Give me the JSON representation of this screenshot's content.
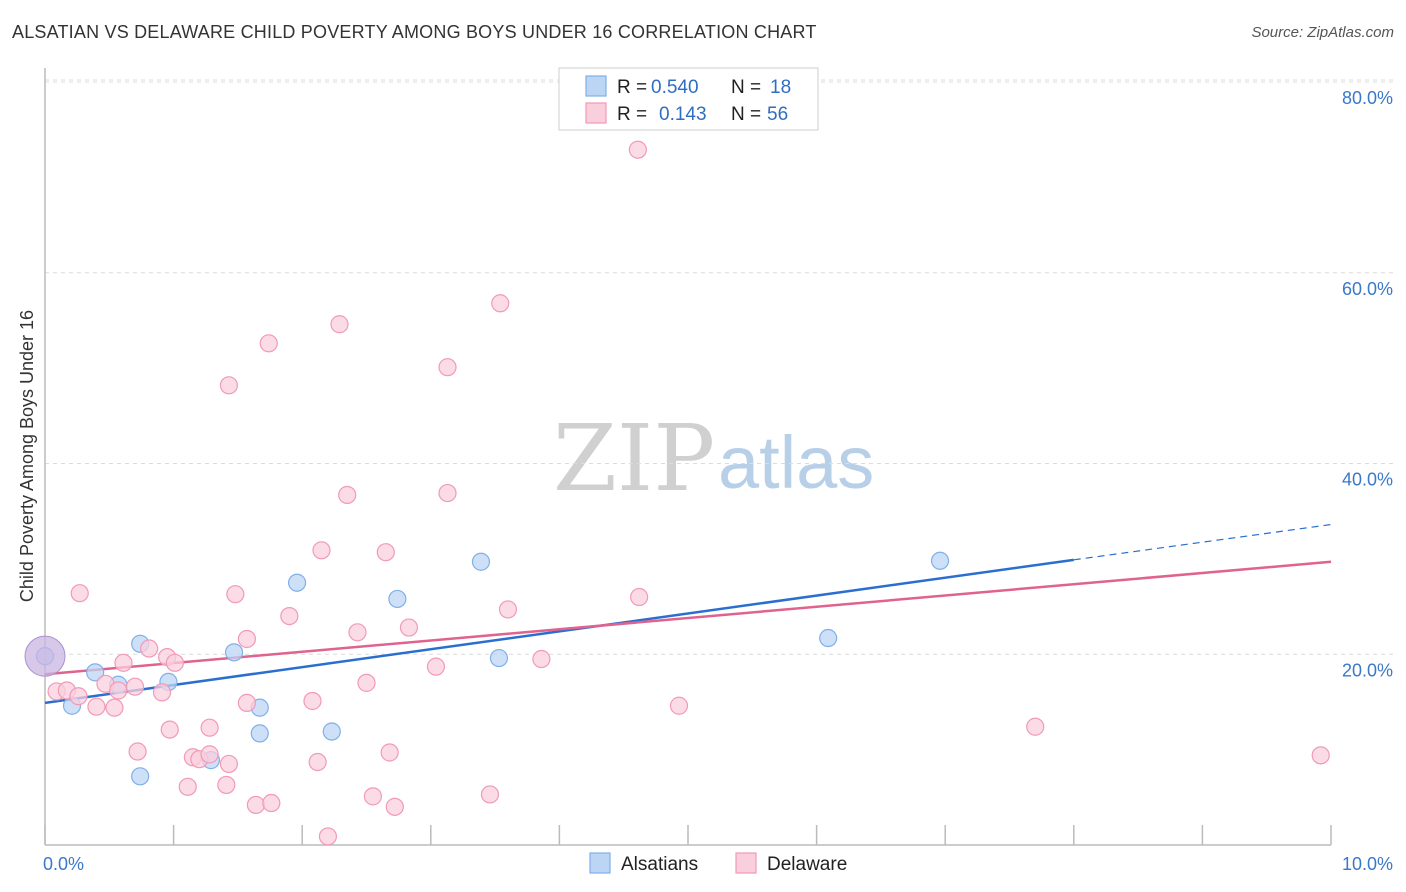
{
  "title": "ALSATIAN VS DELAWARE CHILD POVERTY AMONG BOYS UNDER 16 CORRELATION CHART",
  "source": "Source: ZipAtlas.com",
  "watermark": {
    "zip": "ZIP",
    "atlas": "atlas"
  },
  "legend": {
    "rows": [
      {
        "r_label": "R =",
        "r_value": "0.540",
        "n_label": "N =",
        "n_value": "18"
      },
      {
        "r_label": "R =",
        "r_value": "0.143",
        "n_label": "N =",
        "n_value": "56"
      }
    ]
  },
  "chart_data": {
    "type": "scatter",
    "title": "ALSATIAN VS DELAWARE CHILD POVERTY AMONG BOYS UNDER 16 CORRELATION CHART",
    "ylabel": "Child Poverty Among Boys Under 16",
    "xlim": [
      0,
      10
    ],
    "ylim": [
      0,
      80
    ],
    "x_tick_labels": [
      "0.0%",
      "10.0%"
    ],
    "y_ticks": [
      20,
      40,
      60,
      80
    ],
    "y_tick_labels": [
      "20.0%",
      "40.0%",
      "60.0%",
      "80.0%"
    ],
    "grid": "horizontal dashed",
    "legend_position": "top-center",
    "series": [
      {
        "name": "Alsatians",
        "color": "#7fb0e8",
        "fill": "#bcd5f5",
        "line_color": "#2a6fd0",
        "R": 0.54,
        "N": 18,
        "trend": {
          "x0": 0,
          "y0": 14.9,
          "x1": 8.0,
          "y1": 29.9,
          "dash_to_x": 10.0,
          "dash_to_y": 33.6
        },
        "points": [
          [
            0.0,
            19.8
          ],
          [
            0.21,
            14.6
          ],
          [
            0.39,
            18.1
          ],
          [
            0.57,
            16.8
          ],
          [
            0.74,
            21.1
          ],
          [
            0.96,
            17.1
          ],
          [
            0.74,
            7.2
          ],
          [
            1.29,
            8.9
          ],
          [
            1.47,
            20.2
          ],
          [
            1.67,
            14.4
          ],
          [
            1.67,
            11.7
          ],
          [
            1.96,
            27.5
          ],
          [
            2.23,
            11.9
          ],
          [
            2.74,
            25.8
          ],
          [
            3.39,
            29.7
          ],
          [
            3.53,
            19.6
          ],
          [
            6.09,
            21.7
          ],
          [
            6.96,
            29.8
          ]
        ]
      },
      {
        "name": "Delaware",
        "color": "#f19ab6",
        "fill": "#f9cfdd",
        "line_color": "#e0628e",
        "R": 0.143,
        "N": 56,
        "trend": {
          "x0": 0,
          "y0": 17.9,
          "x1": 10.0,
          "y1": 29.7
        },
        "points": [
          [
            0.09,
            16.1
          ],
          [
            0.17,
            16.2
          ],
          [
            0.26,
            15.6
          ],
          [
            0.27,
            26.4
          ],
          [
            0.4,
            14.5
          ],
          [
            0.47,
            16.9
          ],
          [
            0.54,
            14.4
          ],
          [
            0.57,
            16.2
          ],
          [
            0.61,
            19.1
          ],
          [
            0.7,
            16.6
          ],
          [
            0.72,
            9.8
          ],
          [
            0.81,
            20.6
          ],
          [
            0.91,
            16.0
          ],
          [
            0.95,
            19.7
          ],
          [
            0.97,
            12.1
          ],
          [
            1.01,
            19.1
          ],
          [
            1.11,
            6.1
          ],
          [
            1.15,
            9.2
          ],
          [
            1.2,
            9.0
          ],
          [
            1.28,
            12.3
          ],
          [
            1.28,
            9.5
          ],
          [
            1.41,
            6.3
          ],
          [
            1.43,
            48.2
          ],
          [
            1.48,
            26.3
          ],
          [
            1.57,
            21.6
          ],
          [
            1.57,
            14.9
          ],
          [
            1.64,
            4.2
          ],
          [
            1.74,
            52.6
          ],
          [
            1.76,
            4.4
          ],
          [
            1.9,
            24.0
          ],
          [
            2.08,
            15.1
          ],
          [
            2.12,
            8.7
          ],
          [
            2.15,
            30.9
          ],
          [
            2.2,
            0.9
          ],
          [
            2.29,
            54.6
          ],
          [
            2.35,
            36.7
          ],
          [
            2.43,
            22.3
          ],
          [
            2.5,
            17.0
          ],
          [
            2.55,
            5.1
          ],
          [
            2.65,
            30.7
          ],
          [
            2.68,
            9.7
          ],
          [
            2.72,
            4.0
          ],
          [
            2.83,
            22.8
          ],
          [
            3.04,
            18.7
          ],
          [
            3.13,
            50.1
          ],
          [
            3.13,
            36.9
          ],
          [
            3.46,
            5.3
          ],
          [
            3.54,
            56.8
          ],
          [
            3.6,
            24.7
          ],
          [
            3.86,
            19.5
          ],
          [
            4.61,
            72.9
          ],
          [
            4.62,
            26.0
          ],
          [
            4.93,
            14.6
          ],
          [
            7.7,
            12.4
          ],
          [
            9.92,
            9.4
          ],
          [
            1.43,
            8.5
          ]
        ]
      }
    ]
  }
}
